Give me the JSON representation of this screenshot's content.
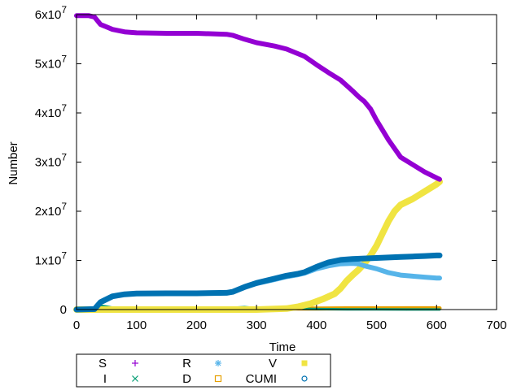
{
  "chart_data": {
    "type": "scatter",
    "title": "",
    "xlabel": "Time",
    "ylabel": "Number",
    "xlim": [
      0,
      700
    ],
    "ylim": [
      0,
      60000000
    ],
    "grid": false,
    "legend_position": "bottom-left, outside",
    "x_ticks": [
      "0",
      "100",
      "200",
      "300",
      "400",
      "500",
      "600",
      "700"
    ],
    "y_ticks": [
      {
        "value": 0,
        "mantissa": "0",
        "exponent": ""
      },
      {
        "value": 10000000,
        "mantissa": "1x10",
        "exponent": "7"
      },
      {
        "value": 20000000,
        "mantissa": "2x10",
        "exponent": "7"
      },
      {
        "value": 30000000,
        "mantissa": "3x10",
        "exponent": "7"
      },
      {
        "value": 40000000,
        "mantissa": "4x10",
        "exponent": "7"
      },
      {
        "value": 50000000,
        "mantissa": "5x10",
        "exponent": "7"
      },
      {
        "value": 60000000,
        "mantissa": "6x10",
        "exponent": "7"
      }
    ],
    "series": [
      {
        "name": "S",
        "color": "#9400d3",
        "marker": "plus",
        "x": [
          0,
          20,
          30,
          40,
          60,
          80,
          100,
          150,
          200,
          250,
          260,
          280,
          300,
          330,
          350,
          370,
          380,
          400,
          420,
          440,
          460,
          470,
          480,
          490,
          500,
          520,
          540,
          560,
          580,
          600,
          605
        ],
        "y": [
          59800000,
          59800000,
          59500000,
          58000000,
          57000000,
          56500000,
          56300000,
          56200000,
          56200000,
          56000000,
          55800000,
          55000000,
          54300000,
          53600000,
          53000000,
          52000000,
          51500000,
          49800000,
          48200000,
          46700000,
          44500000,
          43300000,
          42300000,
          40800000,
          38500000,
          34500000,
          31000000,
          29500000,
          28000000,
          26800000,
          26500000
        ]
      },
      {
        "name": "I",
        "color": "#009e73",
        "marker": "cross",
        "x": [
          0,
          30,
          40,
          50,
          60,
          80,
          100,
          200,
          250,
          280,
          300,
          350,
          400,
          450,
          500,
          550,
          600,
          605
        ],
        "y": [
          0,
          200000,
          800000,
          600000,
          400000,
          200000,
          100000,
          100000,
          300000,
          500000,
          300000,
          200000,
          100000,
          50000,
          30000,
          20000,
          10000,
          10000
        ]
      },
      {
        "name": "R",
        "color": "#56b4e9",
        "marker": "asterisk",
        "x": [
          0,
          30,
          40,
          60,
          80,
          100,
          150,
          200,
          250,
          260,
          280,
          300,
          330,
          350,
          370,
          380,
          400,
          420,
          440,
          460,
          470,
          480,
          500,
          520,
          540,
          560,
          580,
          600,
          605
        ],
        "y": [
          0,
          50000,
          1500000,
          2700000,
          3100000,
          3250000,
          3300000,
          3300000,
          3400000,
          3600000,
          4500000,
          5300000,
          6100000,
          6700000,
          7100000,
          7400000,
          8300000,
          8900000,
          9300000,
          9400000,
          9300000,
          8900000,
          8300000,
          7500000,
          7000000,
          6800000,
          6600000,
          6400000,
          6400000
        ]
      },
      {
        "name": "D",
        "color": "#e69f00",
        "marker": "square",
        "x": [
          0,
          100,
          200,
          300,
          350,
          400,
          450,
          500,
          550,
          600,
          605
        ],
        "y": [
          0,
          50000,
          100000,
          150000,
          200000,
          220000,
          240000,
          250000,
          260000,
          270000,
          270000
        ]
      },
      {
        "name": "V",
        "color": "#f0e442",
        "marker": "filled-square",
        "x": [
          0,
          100,
          200,
          300,
          350,
          370,
          390,
          410,
          430,
          440,
          450,
          460,
          470,
          480,
          490,
          500,
          510,
          520,
          530,
          540,
          560,
          580,
          600,
          605
        ],
        "y": [
          0,
          0,
          0,
          0,
          200000,
          600000,
          1200000,
          2100000,
          3200000,
          4300000,
          5800000,
          7000000,
          8100000,
          9400000,
          11000000,
          13000000,
          15500000,
          18000000,
          20000000,
          21300000,
          22500000,
          24000000,
          25500000,
          26000000
        ]
      },
      {
        "name": "CUMI",
        "color": "#0072b2",
        "marker": "circle",
        "x": [
          0,
          30,
          40,
          60,
          80,
          100,
          150,
          200,
          250,
          260,
          280,
          300,
          330,
          350,
          370,
          380,
          400,
          420,
          440,
          460,
          480,
          500,
          520,
          540,
          560,
          580,
          600,
          605
        ],
        "y": [
          0,
          100000,
          1500000,
          2700000,
          3100000,
          3250000,
          3300000,
          3300000,
          3400000,
          3600000,
          4600000,
          5400000,
          6300000,
          6900000,
          7300000,
          7600000,
          8700000,
          9600000,
          10100000,
          10300000,
          10400000,
          10500000,
          10600000,
          10700000,
          10800000,
          10900000,
          11000000,
          11000000
        ]
      }
    ],
    "legend": {
      "rows": [
        [
          "S",
          "R",
          "V"
        ],
        [
          "I",
          "D",
          "CUMI"
        ]
      ]
    }
  }
}
